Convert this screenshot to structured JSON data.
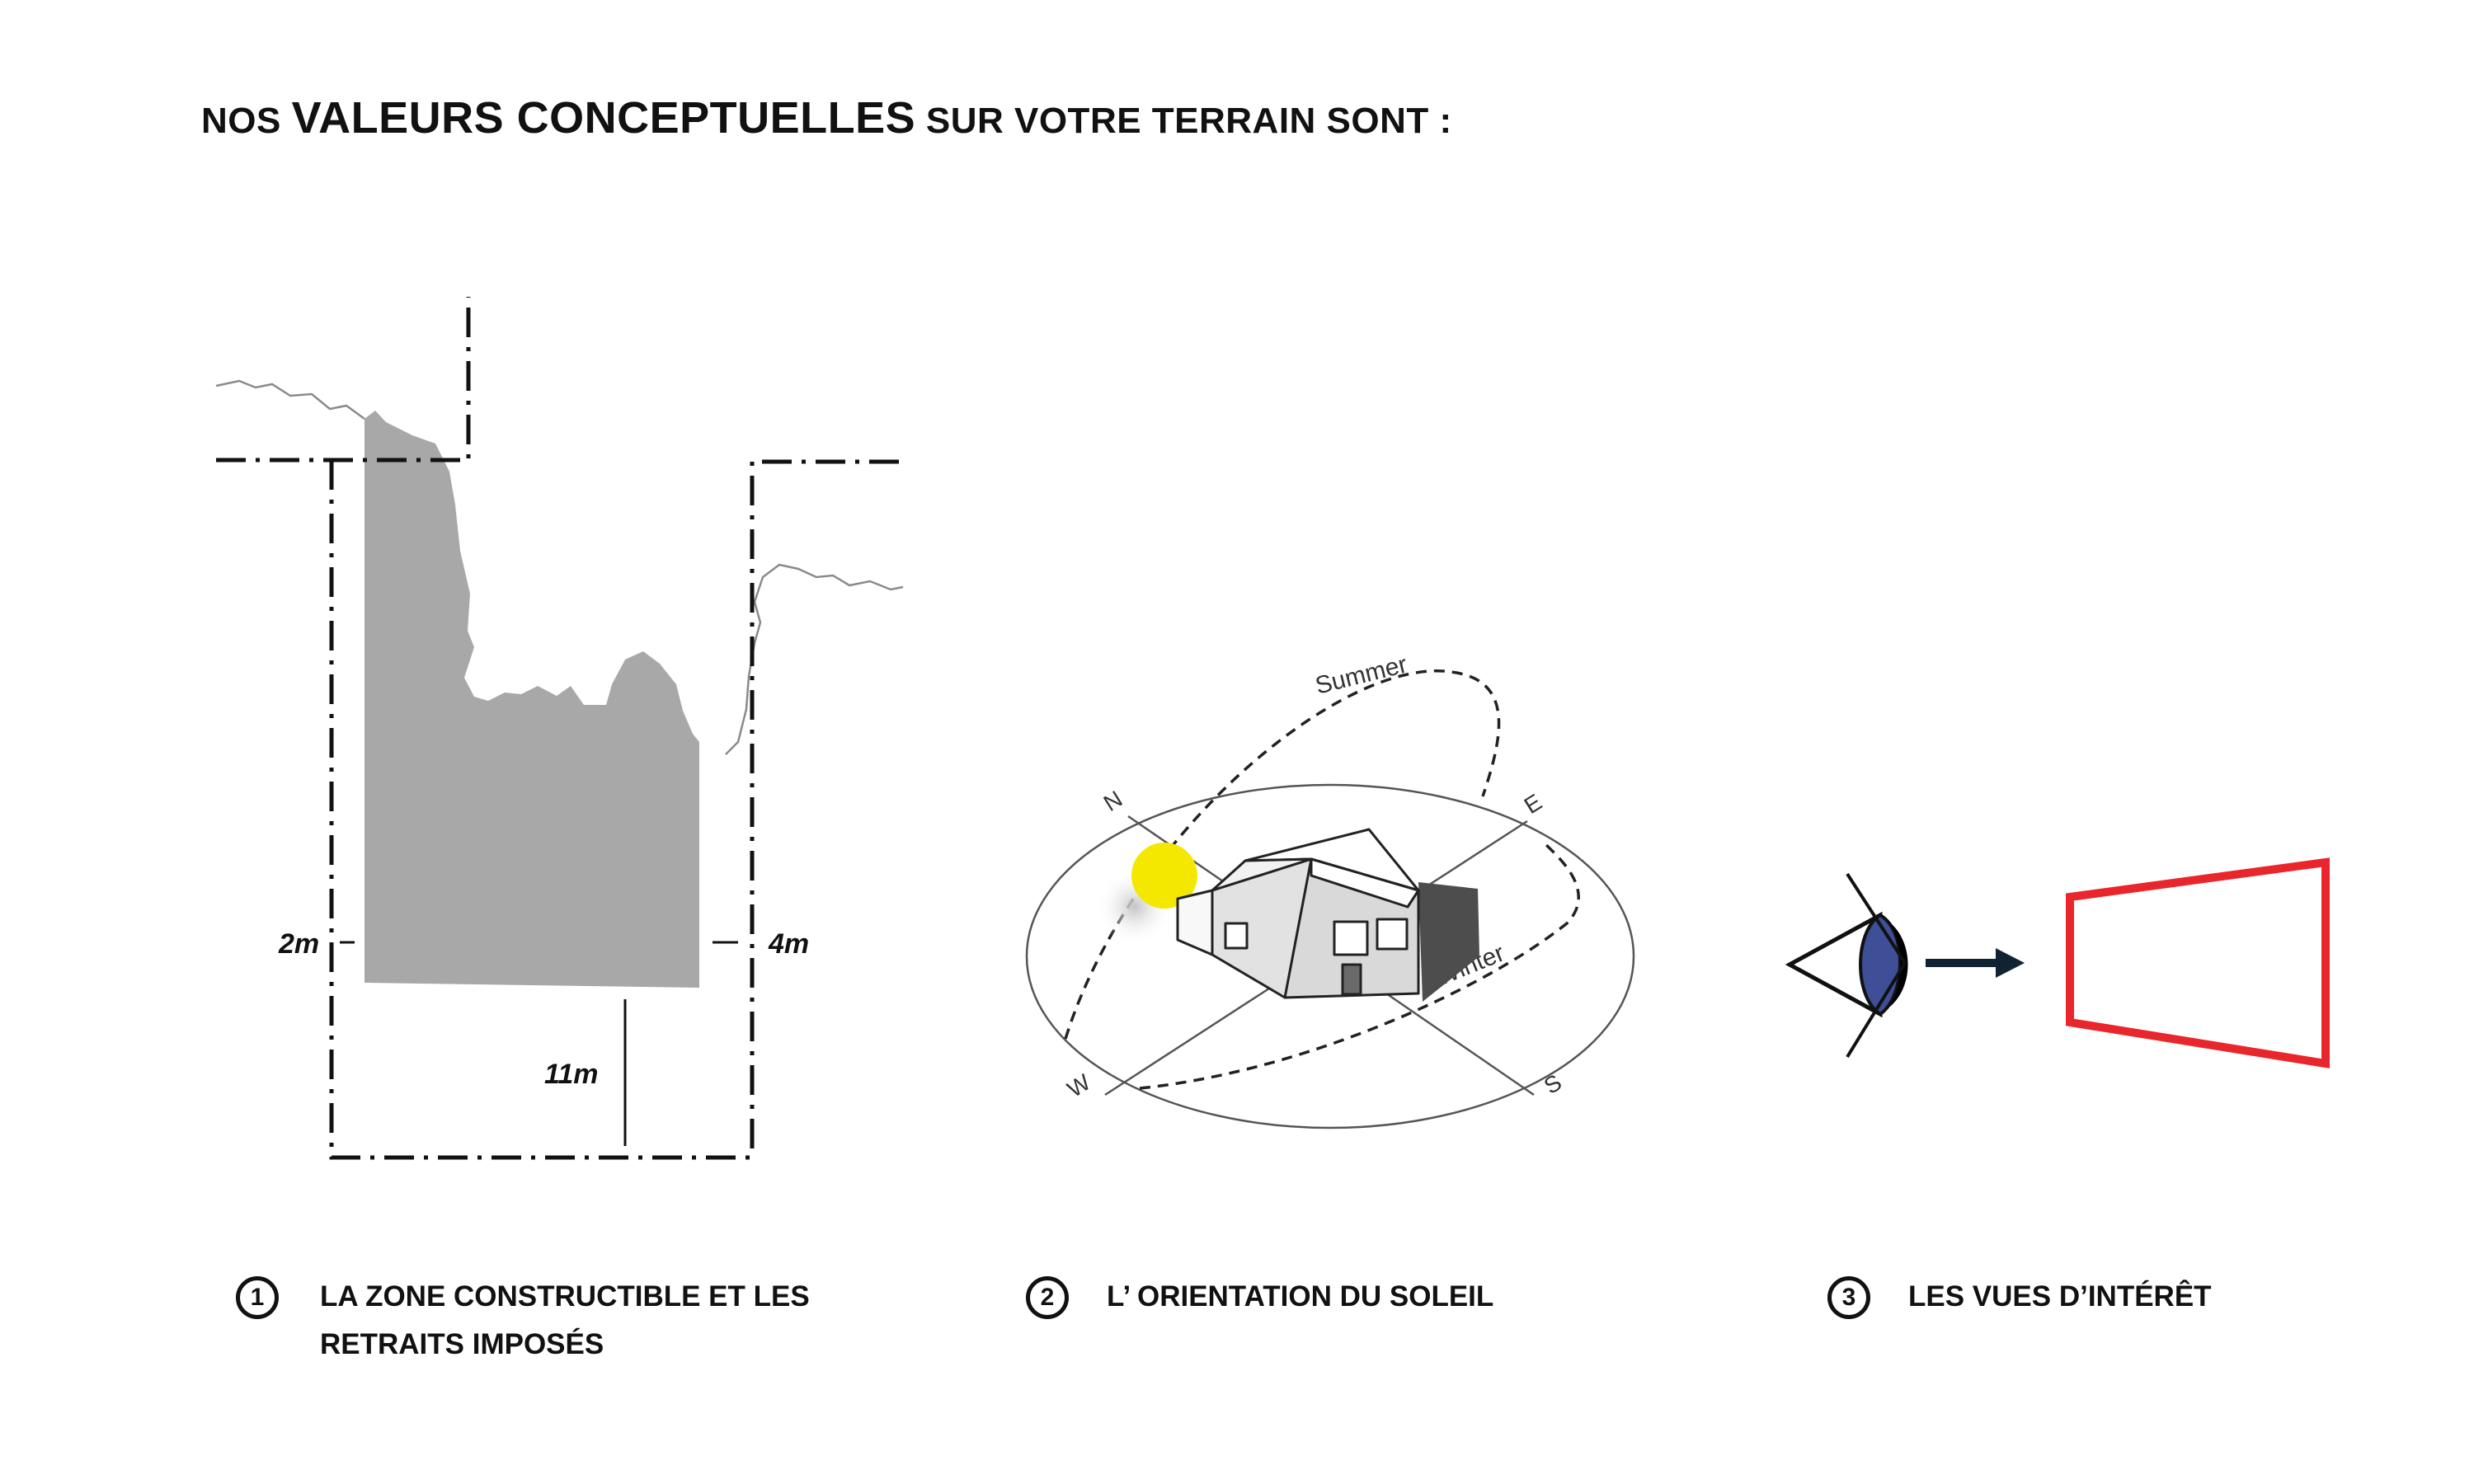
{
  "heading": {
    "part1": "NOS ",
    "part2": "VALEURS CONCEPTUELLES",
    "part3": " SUR VOTRE TERRAIN SONT :"
  },
  "figure1": {
    "setback_left": "2m",
    "setback_right": "4m",
    "setback_bottom": "11m"
  },
  "figure2": {
    "summer_label": "Summer",
    "winter_label": "Winter",
    "compass": {
      "n": "N",
      "e": "E",
      "s": "S",
      "w": "W"
    }
  },
  "captions": [
    {
      "number": "1",
      "lines": [
        "LA ZONE CONSTRUCTIBLE  ET LES",
        "RETRAITS IMPOSÉS"
      ]
    },
    {
      "number": "2",
      "lines": [
        "L’ ORIENTATION DU SOLEIL"
      ]
    },
    {
      "number": "3",
      "lines": [
        "LES VUES D’INTÉRÊT"
      ]
    }
  ],
  "colors": {
    "buildable_zone": "#a8a8a8",
    "sun": "#f5e800",
    "frame": "#e8262b",
    "eye": "#3e4f97"
  }
}
